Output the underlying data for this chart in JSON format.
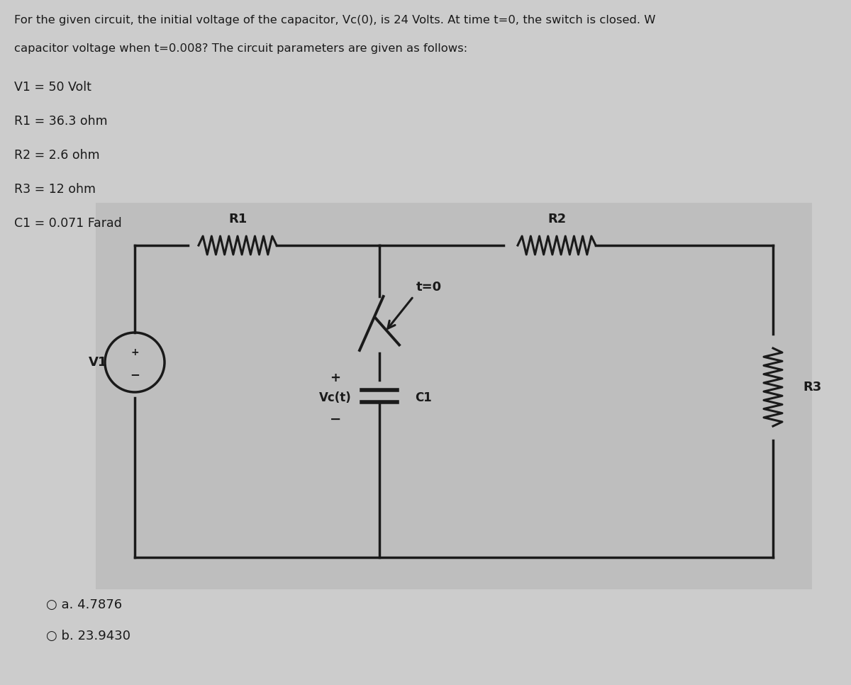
{
  "bg_color": "#cccccc",
  "circuit_bg": "#c0c0c0",
  "text_color": "#1a1a1a",
  "wire_color": "#1a1a1a",
  "title_text": "For the given circuit, the initial voltage of the capacitor, Vc(0), is 24 Volts. At time t=0, the switch is closed. W",
  "subtitle_text": "capacitor voltage when t=0.008? The circuit parameters are given as follows:",
  "params": [
    "V1 = 50 Volt",
    "R1 = 36.3 ohm",
    "R2 = 2.6 ohm",
    "R3 = 12 ohm",
    "C1 = 0.071 Farad"
  ],
  "answer_a": "○ a. 4.7876",
  "answer_b": "○ b. 23.9430"
}
